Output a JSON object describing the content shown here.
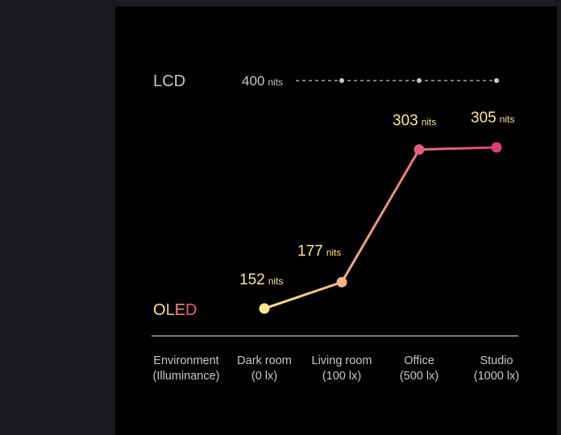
{
  "chart_data": {
    "type": "line",
    "categories": [
      [
        "Dark room",
        "(0 lx)"
      ],
      [
        "Living room",
        "(100 lx)"
      ],
      [
        "Office",
        "(500 lx)"
      ],
      [
        "Studio",
        "(1000 lx)"
      ]
    ],
    "row_label": [
      "Environment",
      "(Illuminance)"
    ],
    "series": [
      {
        "name": "LCD",
        "values": [
          400,
          400,
          400,
          400
        ],
        "value_label": "400",
        "unit": "nits",
        "style": "dashed",
        "color": "#c8c8c8"
      },
      {
        "name": "OLED",
        "values": [
          152,
          177,
          303,
          305
        ],
        "unit": "nits",
        "point_colors": [
          "#fbe98a",
          "#f2b28c",
          "#e85d7c",
          "#de3e76"
        ],
        "line_gradient": [
          "#fbe98a",
          "#de3e76"
        ]
      }
    ],
    "label_color": "#fbe98a",
    "axis_color": "#bfbfbf",
    "category_text_color": "#c8c8c8"
  }
}
